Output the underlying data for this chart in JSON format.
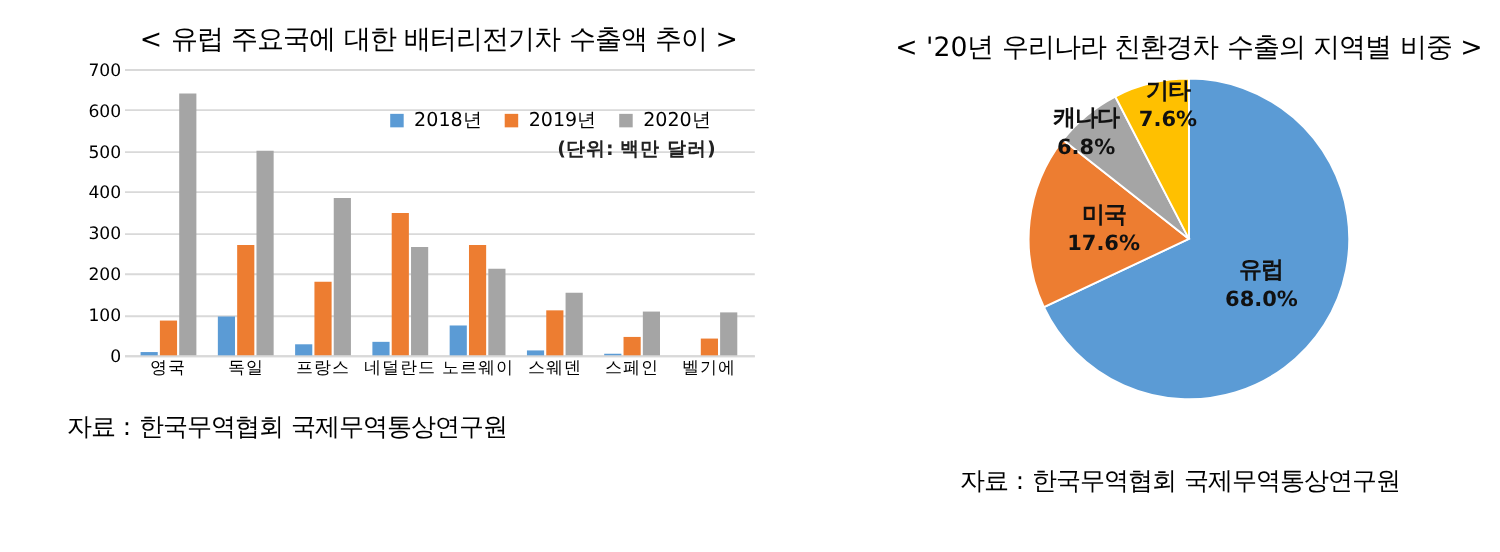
{
  "chart_data": [
    {
      "type": "bar",
      "title": "< 유럽 주요국에 대한 배터리전기차 수출액 추이 >",
      "categories": [
        "영국",
        "독일",
        "프랑스",
        "네덜란드",
        "노르웨이",
        "스웨덴",
        "스페인",
        "벨기에"
      ],
      "series": [
        {
          "name": "2018년",
          "color": "#5b9bd5",
          "values": [
            8,
            95,
            27,
            33,
            73,
            12,
            4,
            null
          ]
        },
        {
          "name": "2019년",
          "color": "#ed7d31",
          "values": [
            85,
            270,
            180,
            348,
            270,
            110,
            45,
            41
          ]
        },
        {
          "name": "2020년",
          "color": "#a5a5a5",
          "values": [
            640,
            500,
            385,
            265,
            212,
            153,
            107,
            105
          ]
        }
      ],
      "ylim": [
        0,
        700
      ],
      "yticks": [
        0,
        100,
        200,
        300,
        400,
        500,
        600,
        700
      ],
      "grid": "y",
      "legend": "top right",
      "annotations": [
        "(단위: 백만 달러)",
        "자료 : 한국무역협회 국제무역통상연구원"
      ]
    },
    {
      "type": "pie",
      "title": "< '20년 우리나라 친환경차 수출의 지역별 비중 >",
      "categories": [
        "유럽",
        "미국",
        "캐나다",
        "기타"
      ],
      "values": [
        68.0,
        17.6,
        6.8,
        7.6
      ],
      "colors": [
        "#5b9bd5",
        "#ed7d31",
        "#a5a5a5",
        "#ffc000"
      ],
      "value_labels": [
        "68.0%",
        "17.6%",
        "6.8%",
        "7.6%"
      ],
      "annotations": [
        "자료 : 한국무역협회 국제무역통상연구원"
      ]
    }
  ]
}
